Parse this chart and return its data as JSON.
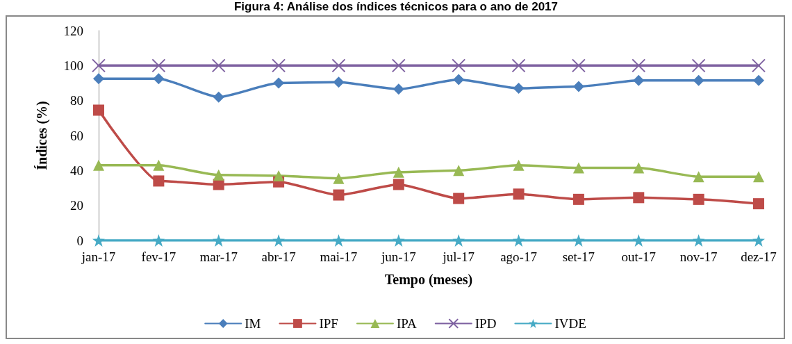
{
  "chart_data": {
    "type": "line",
    "title": "Figura 4: Análise dos índices técnicos para o ano de 2017",
    "xlabel": "Tempo (meses)",
    "ylabel": "Índices (%)",
    "categories": [
      "jan-17",
      "fev-17",
      "mar-17",
      "abr-17",
      "mai-17",
      "jun-17",
      "jul-17",
      "ago-17",
      "set-17",
      "out-17",
      "nov-17",
      "dez-17"
    ],
    "series": [
      {
        "name": "IM",
        "color": "#4a7ebb",
        "marker": "diamond",
        "values": [
          92.5,
          92.5,
          82,
          90,
          90.5,
          86.5,
          92,
          87,
          88,
          91.5,
          91.5,
          91.5
        ]
      },
      {
        "name": "IPF",
        "color": "#be4b48",
        "marker": "square",
        "values": [
          74.5,
          34,
          32,
          33.5,
          26,
          32,
          24,
          26.5,
          23.5,
          24.5,
          23.5,
          21
        ]
      },
      {
        "name": "IPA",
        "color": "#98b954",
        "marker": "triangle",
        "values": [
          43,
          43,
          37.5,
          37,
          35.5,
          39,
          40,
          43,
          41.5,
          41.5,
          36.5,
          36.5
        ]
      },
      {
        "name": "IPD",
        "color": "#7d60a0",
        "marker": "cross",
        "values": [
          100,
          100,
          100,
          100,
          100,
          100,
          100,
          100,
          100,
          100,
          100,
          100
        ]
      },
      {
        "name": "IVDE",
        "color": "#46aac5",
        "marker": "star",
        "values": [
          0,
          0,
          0,
          0,
          0,
          0,
          0,
          0,
          0,
          0,
          0,
          0
        ]
      }
    ],
    "ylim": [
      0,
      120
    ],
    "yticks": [
      0,
      20,
      40,
      60,
      80,
      100,
      120
    ],
    "grid": false,
    "legend": "bottom",
    "line_style": "solid"
  }
}
